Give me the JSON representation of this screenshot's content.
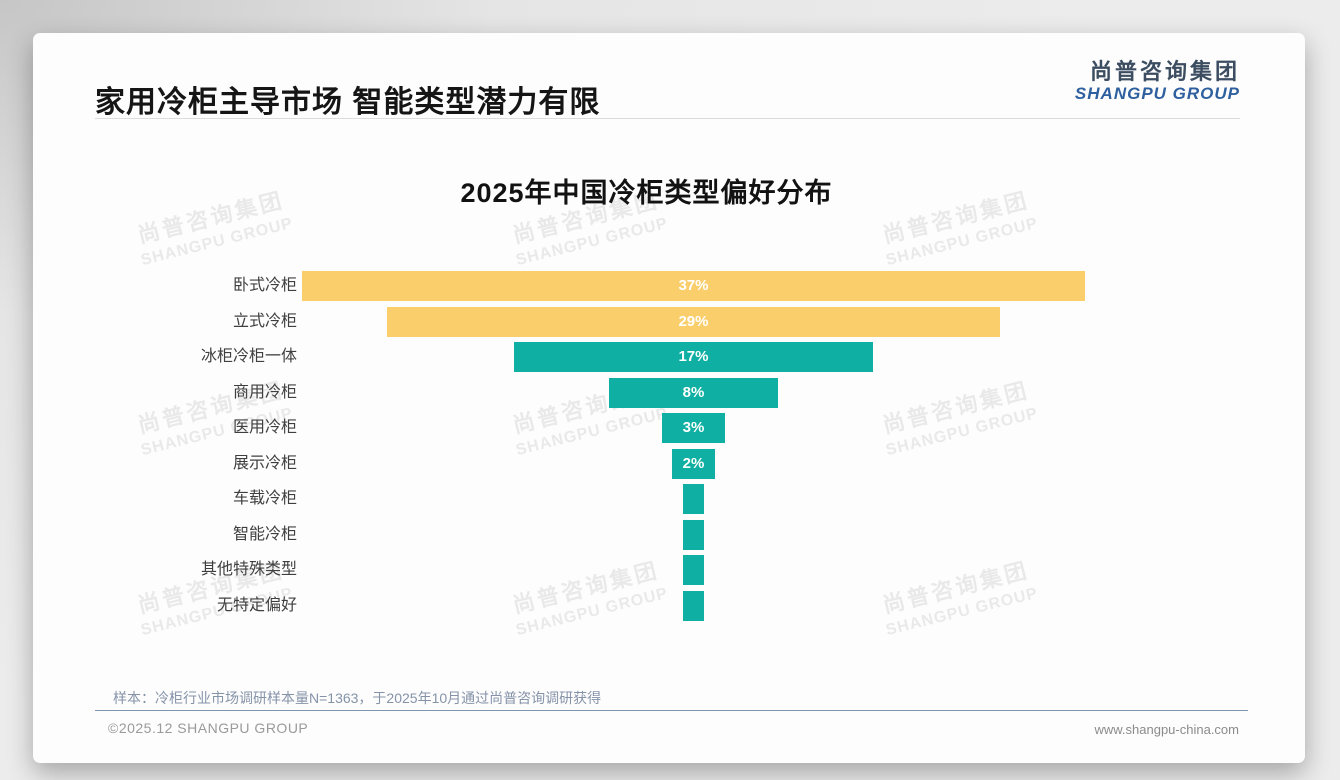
{
  "page": {
    "title": "家用冷柜主导市场 智能类型潜力有限",
    "logo": {
      "cn": "尚普咨询集团",
      "en": "SHANGPU GROUP"
    },
    "watermark": {
      "line1": "尚普咨询集团",
      "line2": "SHANGPU GROUP"
    },
    "note": "样本：冷柜行业市场调研样本量N=1363，于2025年10月通过尚普咨询调研获得",
    "footer": {
      "left": "©2025.12 SHANGPU GROUP",
      "right": "www.shangpu-china.com"
    }
  },
  "colors": {
    "bar_yellow": "#F9CE6B",
    "bar_teal": "#0FB0A3",
    "note_text": "#8593A9",
    "footer_divider": "#7F95AD",
    "logo_cn": "#3C4D61",
    "logo_en": "#2E5F9E"
  },
  "chart_data": {
    "type": "bar",
    "orientation": "horizontal_centered_funnel",
    "title": "2025年中国冷柜类型偏好分布",
    "categories": [
      "卧式冷柜",
      "立式冷柜",
      "冰柜冷柜一体",
      "商用冷柜",
      "医用冷柜",
      "展示冷柜",
      "车载冷柜",
      "智能冷柜",
      "其他特殊类型",
      "无特定偏好"
    ],
    "values": [
      37,
      29,
      17,
      8,
      3,
      2,
      1,
      1,
      1,
      1
    ],
    "value_labels": [
      "37%",
      "29%",
      "17%",
      "8%",
      "3%",
      "2%",
      "",
      "",
      "",
      ""
    ],
    "unit": "%",
    "colors": [
      "#F9CE6B",
      "#F9CE6B",
      "#0FB0A3",
      "#0FB0A3",
      "#0FB0A3",
      "#0FB0A3",
      "#0FB0A3",
      "#0FB0A3",
      "#0FB0A3",
      "#0FB0A3"
    ],
    "xlim": [
      0,
      37
    ],
    "grid": false,
    "legend": false
  }
}
